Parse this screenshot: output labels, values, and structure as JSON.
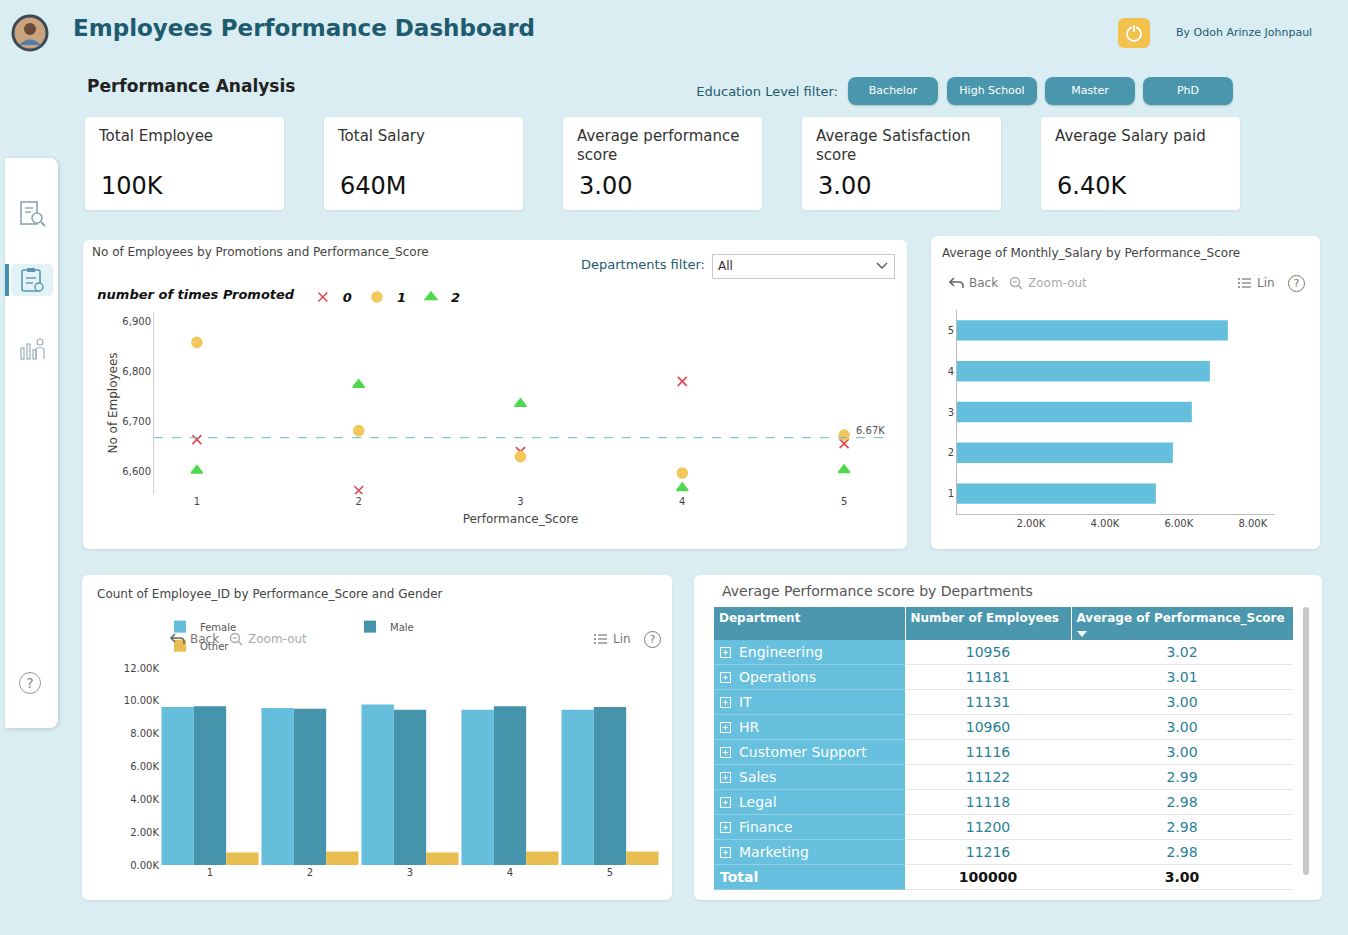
{
  "header": {
    "title": "Employees Performance Dashboard",
    "author": "By Odoh Arinze Johnpaul"
  },
  "section_title": "Performance Analysis",
  "education_filter": {
    "label": "Education Level filter:",
    "options": [
      "Bachelor",
      "High School",
      "Master",
      "PhD"
    ]
  },
  "sidebar": {
    "help": "?"
  },
  "kpis": [
    {
      "label": "Total Employee",
      "value": "100K"
    },
    {
      "label": "Total Salary",
      "value": "640M"
    },
    {
      "label": "Average performance score",
      "value": "3.00"
    },
    {
      "label": "Average Satisfaction score",
      "value": "3.00"
    },
    {
      "label": "Average Salary paid",
      "value": "6.40K"
    }
  ],
  "chart_data": [
    {
      "type": "scatter",
      "title": "No of Employees by Promotions and Performance_Score",
      "x_label": "Performance_Score",
      "y_label": "No of Employees",
      "categories": [
        "1",
        "2",
        "3",
        "4",
        "5"
      ],
      "legend_title": "number of times Promoted",
      "legend": "top left",
      "series": [
        {
          "name": "0",
          "color": "#e0474c",
          "marker": "x",
          "values": [
            6664,
            6562,
            6640,
            6781,
            6656
          ]
        },
        {
          "name": "1",
          "color": "#f2c75c",
          "marker": "circle",
          "values": [
            6859,
            6682,
            6630,
            6597,
            6673
          ]
        },
        {
          "name": "2",
          "color": "#4fd94f",
          "marker": "triangle-up",
          "values": [
            6602,
            6774,
            6736,
            6567,
            6603
          ]
        }
      ],
      "ylim": [
        6555,
        6920
      ],
      "yticks": [
        {
          "value": 6600,
          "label": "6,600"
        },
        {
          "value": 6700,
          "label": "6,700"
        },
        {
          "value": 6800,
          "label": "6,800"
        },
        {
          "value": 6900,
          "label": "6,900"
        }
      ],
      "grid": false,
      "reference_line": {
        "value": 6668,
        "label": "6.67K"
      },
      "filter": {
        "label": "Departments filter:",
        "value": "All"
      }
    },
    {
      "type": "bar",
      "orientation": "horizontal",
      "title": "Average of Monthly_Salary by Performance_Score",
      "categories": [
        "1",
        "2",
        "3",
        "4",
        "5"
      ],
      "values": [
        5378,
        5838,
        6351,
        6838,
        7324
      ],
      "color": "#63bfdc",
      "xlim": [
        0,
        8600
      ],
      "xticks": [
        {
          "value": 2000,
          "label": "2.00K"
        },
        {
          "value": 4000,
          "label": "4.00K"
        },
        {
          "value": 6000,
          "label": "6.00K"
        },
        {
          "value": 8000,
          "label": "8.00K"
        }
      ],
      "grid": false,
      "toolbar": {
        "back": "Back",
        "zoom": "Zoom-out",
        "line": "Lin",
        "help": "?"
      }
    },
    {
      "type": "bar",
      "title": "Count of Employee_ID by Performance_Score and Gender",
      "categories": [
        "1",
        "2",
        "3",
        "4",
        "5"
      ],
      "series": [
        {
          "name": "Female",
          "color": "#64bedc",
          "values": [
            9620,
            9565,
            9783,
            9457,
            9457
          ]
        },
        {
          "name": "Male",
          "color": "#4594ab",
          "values": [
            9674,
            9511,
            9457,
            9674,
            9620
          ]
        },
        {
          "name": "Other",
          "color": "#e8bd4f",
          "values": [
            761,
            815,
            761,
            815,
            815
          ]
        }
      ],
      "ylim": [
        0,
        12000
      ],
      "yticks": [
        {
          "value": 0,
          "label": "0.00K"
        },
        {
          "value": 2000,
          "label": "2.00K"
        },
        {
          "value": 4000,
          "label": "4.00K"
        },
        {
          "value": 6000,
          "label": "6.00K"
        },
        {
          "value": 8000,
          "label": "8.00K"
        },
        {
          "value": 10000,
          "label": "10.00K"
        },
        {
          "value": 12000,
          "label": "12.00K"
        }
      ],
      "legend": "top left",
      "grid": false,
      "toolbar": {
        "back": "Back",
        "zoom": "Zoom-out",
        "line": "Lin",
        "help": "?"
      }
    }
  ],
  "table": {
    "title": "Average Performance score by Departments",
    "columns": [
      "Department",
      "Number of Employees",
      "Average of Performance_Score"
    ],
    "rows": [
      [
        "Engineering",
        "10956",
        "3.02"
      ],
      [
        "Operations",
        "11181",
        "3.01"
      ],
      [
        "IT",
        "11131",
        "3.00"
      ],
      [
        "HR",
        "10960",
        "3.00"
      ],
      [
        "Customer Support",
        "11116",
        "3.00"
      ],
      [
        "Sales",
        "11122",
        "2.99"
      ],
      [
        "Legal",
        "11118",
        "2.98"
      ],
      [
        "Finance",
        "11200",
        "2.98"
      ],
      [
        "Marketing",
        "11216",
        "2.98"
      ]
    ],
    "total": [
      "Total",
      "100000",
      "3.00"
    ]
  }
}
